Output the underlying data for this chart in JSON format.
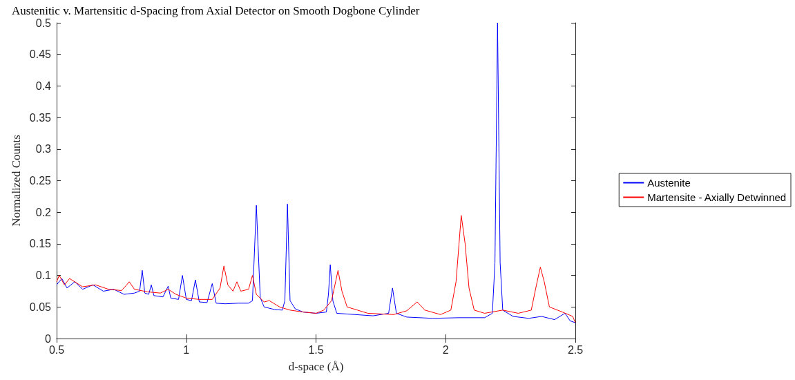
{
  "chart_data": {
    "type": "line",
    "title": "Austenitic v. Martensitic d-Spacing from Axial Detector on Smooth Dogbone Cylinder",
    "xlabel": "d-space (Å)",
    "ylabel": "Normalized Counts",
    "xlim": [
      0.5,
      2.5
    ],
    "xticks": [
      0.5,
      1,
      1.5,
      2,
      2.5
    ],
    "ylim": [
      0,
      0.5
    ],
    "yticks": [
      0,
      0.05,
      0.1,
      0.15,
      0.2,
      0.25,
      0.3,
      0.35,
      0.4,
      0.45,
      0.5
    ],
    "grid": false,
    "legend": "right",
    "marker": "none",
    "line_style": "solid",
    "series": [
      {
        "name": "Austenite",
        "color": "#0000ff",
        "x": [
          0.5,
          0.52,
          0.54,
          0.57,
          0.6,
          0.64,
          0.68,
          0.72,
          0.76,
          0.8,
          0.82,
          0.83,
          0.84,
          0.855,
          0.865,
          0.875,
          0.91,
          0.93,
          0.94,
          0.97,
          0.985,
          1.0,
          1.02,
          1.035,
          1.05,
          1.08,
          1.1,
          1.115,
          1.15,
          1.2,
          1.24,
          1.255,
          1.27,
          1.285,
          1.3,
          1.34,
          1.37,
          1.38,
          1.39,
          1.4,
          1.42,
          1.45,
          1.5,
          1.54,
          1.548,
          1.555,
          1.565,
          1.58,
          1.65,
          1.72,
          1.78,
          1.795,
          1.81,
          1.85,
          1.95,
          2.05,
          2.15,
          2.18,
          2.19,
          2.2,
          2.21,
          2.22,
          2.26,
          2.32,
          2.37,
          2.42,
          2.46,
          2.48,
          2.5
        ],
        "values": [
          0.085,
          0.095,
          0.08,
          0.09,
          0.078,
          0.085,
          0.075,
          0.078,
          0.07,
          0.072,
          0.075,
          0.108,
          0.072,
          0.07,
          0.085,
          0.068,
          0.066,
          0.083,
          0.064,
          0.062,
          0.1,
          0.062,
          0.06,
          0.093,
          0.058,
          0.057,
          0.087,
          0.056,
          0.055,
          0.056,
          0.056,
          0.06,
          0.211,
          0.065,
          0.05,
          0.046,
          0.045,
          0.06,
          0.213,
          0.06,
          0.047,
          0.042,
          0.04,
          0.042,
          0.07,
          0.117,
          0.06,
          0.04,
          0.038,
          0.036,
          0.04,
          0.08,
          0.04,
          0.034,
          0.032,
          0.033,
          0.033,
          0.04,
          0.12,
          0.5,
          0.12,
          0.045,
          0.035,
          0.032,
          0.035,
          0.03,
          0.04,
          0.028,
          0.025
        ]
      },
      {
        "name": "Martensite - Axially Detwinned",
        "color": "#ff0000",
        "x": [
          0.5,
          0.51,
          0.53,
          0.55,
          0.6,
          0.65,
          0.7,
          0.75,
          0.77,
          0.78,
          0.8,
          0.85,
          0.9,
          0.93,
          0.96,
          1.0,
          1.05,
          1.1,
          1.13,
          1.145,
          1.16,
          1.18,
          1.195,
          1.21,
          1.24,
          1.255,
          1.27,
          1.3,
          1.32,
          1.36,
          1.4,
          1.45,
          1.5,
          1.53,
          1.56,
          1.585,
          1.6,
          1.62,
          1.7,
          1.8,
          1.85,
          1.89,
          1.92,
          1.98,
          2.02,
          2.04,
          2.06,
          2.075,
          2.09,
          2.11,
          2.15,
          2.22,
          2.28,
          2.33,
          2.35,
          2.365,
          2.38,
          2.4,
          2.45,
          2.49,
          2.5
        ],
        "values": [
          0.09,
          0.1,
          0.085,
          0.095,
          0.082,
          0.085,
          0.078,
          0.076,
          0.085,
          0.09,
          0.078,
          0.074,
          0.072,
          0.078,
          0.07,
          0.064,
          0.062,
          0.062,
          0.08,
          0.115,
          0.085,
          0.075,
          0.09,
          0.075,
          0.078,
          0.1,
          0.07,
          0.058,
          0.06,
          0.05,
          0.045,
          0.042,
          0.04,
          0.045,
          0.06,
          0.108,
          0.075,
          0.05,
          0.04,
          0.038,
          0.044,
          0.058,
          0.045,
          0.038,
          0.045,
          0.09,
          0.195,
          0.15,
          0.08,
          0.045,
          0.04,
          0.045,
          0.04,
          0.045,
          0.085,
          0.113,
          0.09,
          0.05,
          0.042,
          0.035,
          0.025
        ]
      }
    ]
  }
}
